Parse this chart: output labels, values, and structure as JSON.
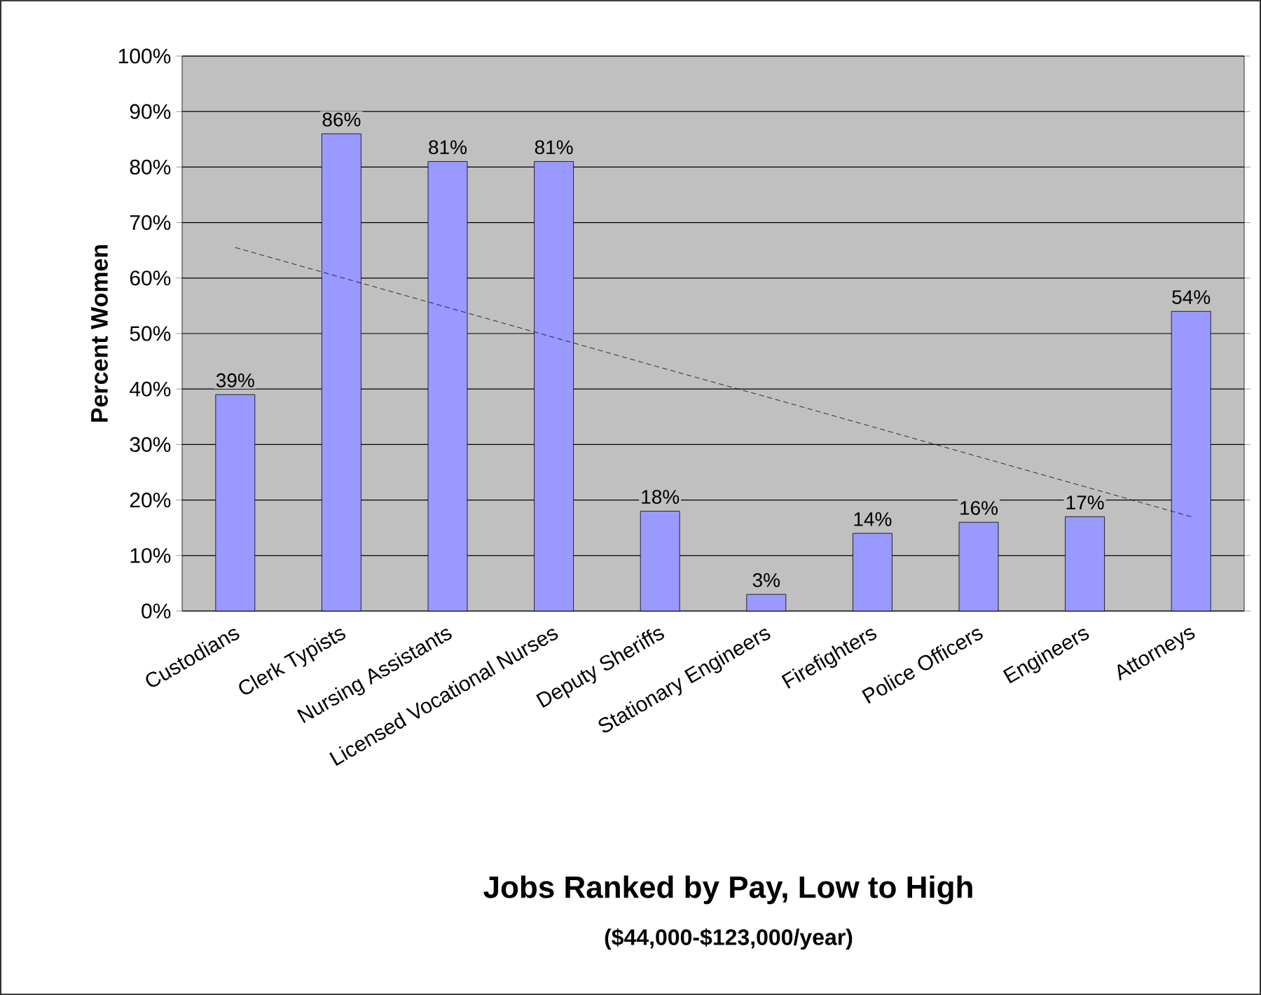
{
  "chart_data": {
    "type": "bar",
    "categories": [
      "Custodians",
      "Clerk Typists",
      "Nursing Assistants",
      "Licensed Vocational Nurses",
      "Deputy Sheriffs",
      "Stationary Engineers",
      "Firefighters",
      "Police Officers",
      "Engineers",
      "Attorneys"
    ],
    "series": [
      {
        "color": "#9999ff",
        "values": [
          39,
          86,
          81,
          81,
          18,
          3,
          14,
          16,
          17,
          54
        ],
        "value_labels": [
          "39%",
          "86%",
          "81%",
          "81%",
          "18%",
          "3%",
          "14%",
          "16%",
          "17%",
          "54%"
        ]
      },
      {
        "type": "line",
        "color": "#000000",
        "line_style": "dashed",
        "marker": "none",
        "values": [
          65.5,
          60.1,
          54.7,
          49.3,
          43.9,
          38.6,
          33.2,
          27.8,
          22.4,
          17
        ]
      }
    ],
    "xlabel": "Jobs Ranked by Pay, Low to High",
    "ylabel": "Percent Women",
    "annotations": [
      "($44,000-$123,000/year)"
    ],
    "ylim": [
      0,
      100
    ],
    "yticks": [
      {
        "value": 0,
        "label": "0%"
      },
      {
        "value": 10,
        "label": "10%"
      },
      {
        "value": 20,
        "label": "20%"
      },
      {
        "value": 30,
        "label": "30%"
      },
      {
        "value": 40,
        "label": "40%"
      },
      {
        "value": 50,
        "label": "50%"
      },
      {
        "value": 60,
        "label": "60%"
      },
      {
        "value": 70,
        "label": "70%"
      },
      {
        "value": 80,
        "label": "80%"
      },
      {
        "value": 90,
        "label": "90%"
      },
      {
        "value": 100,
        "label": "100%"
      }
    ],
    "grid": "y"
  }
}
